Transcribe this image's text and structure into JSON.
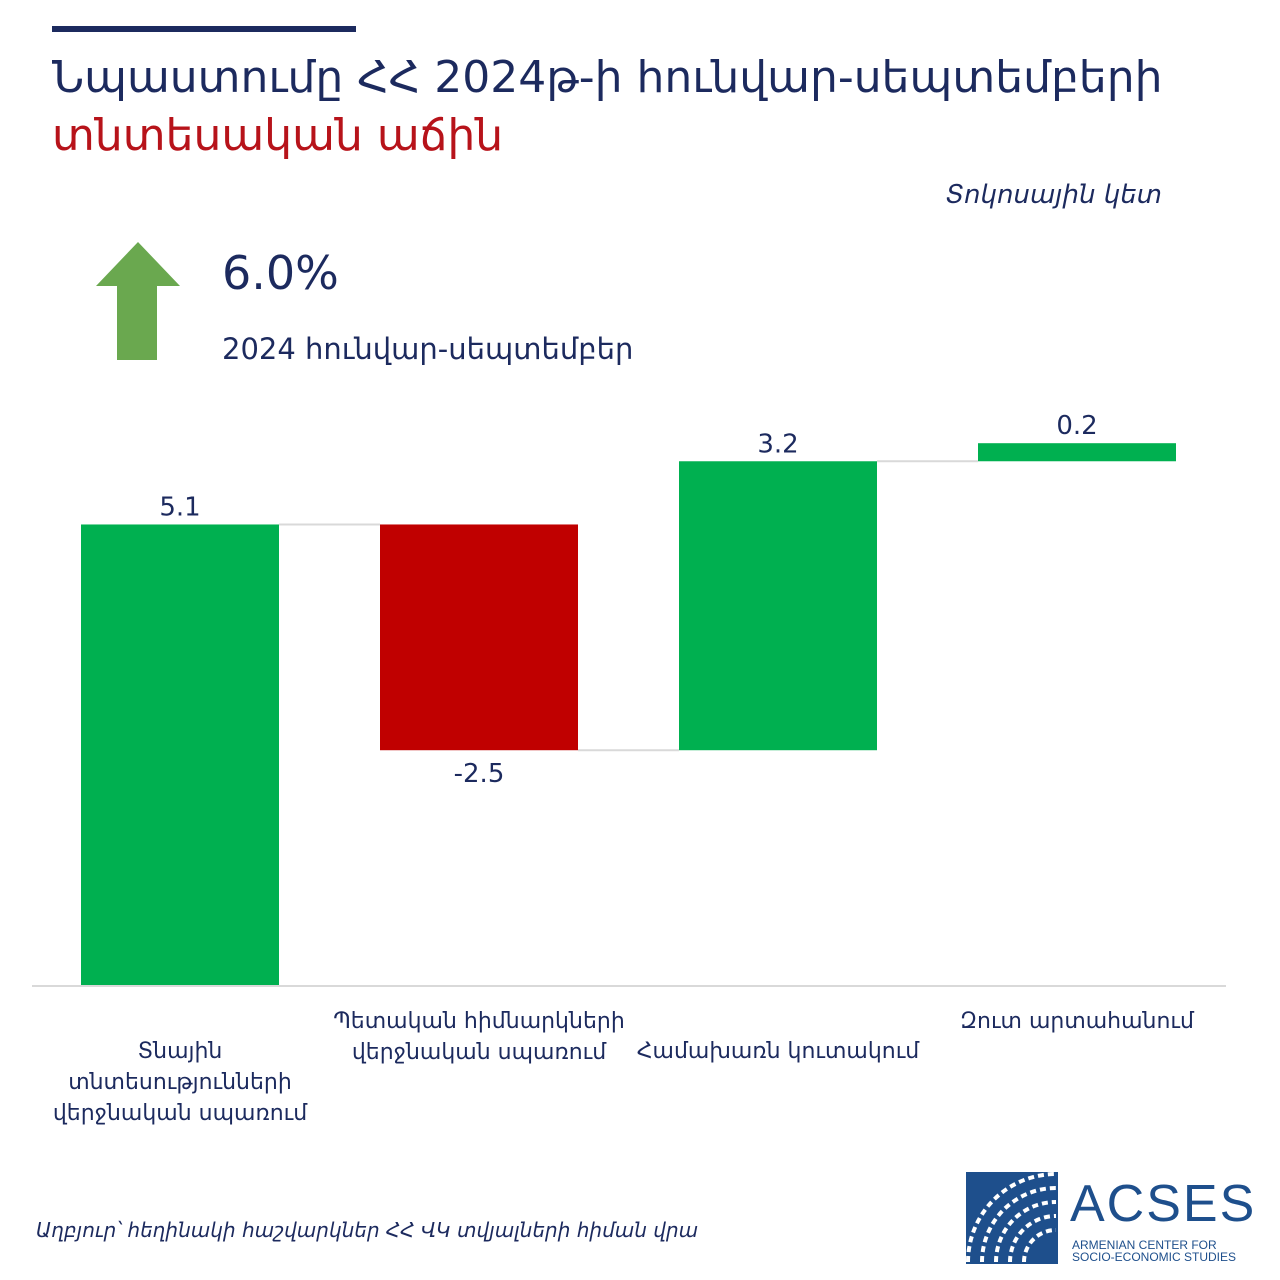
{
  "header": {
    "title_line1": "Նպաստումը ՀՀ 2024թ-ի հունվար-սեպտեմբերի",
    "title_line2": "տնտեսական աճին",
    "unit_note": "Տոկոսային կետ"
  },
  "headline": {
    "value": "6.0%",
    "period": "2024 հունվար-սեպտեմբեր",
    "arrow_icon": "up-arrow-icon",
    "arrow_color": "#6aa84f"
  },
  "chart_data": {
    "type": "waterfall",
    "title": "Նպաստումը ՀՀ 2024թ-ի հունվար-սեպտեմբերի տնտեսական աճին",
    "ylabel": "Տոկոսային կետ",
    "total": 6.0,
    "categories": [
      "Տնային տնտեսությունների վերջնական սպառում",
      "Պետական հիմնարկների վերջնական սպառում",
      "Համախառն կուտակում",
      "Զուտ արտահանում"
    ],
    "category_lines": [
      [
        "Տնային",
        "տնտեսությունների",
        "վերջնական սպառում"
      ],
      [
        "Պետական հիմնարկների",
        "վերջնական սպառում"
      ],
      [
        "Համախառն կուտակում"
      ],
      [
        "Զուտ արտահանում"
      ]
    ],
    "values": [
      5.1,
      -2.5,
      3.2,
      0.2
    ],
    "value_labels": [
      "5.1",
      "-2.5",
      "3.2",
      "0.2"
    ],
    "positive_color": "#00b050",
    "negative_color": "#c00000",
    "grid": false,
    "legend": "none"
  },
  "footer": {
    "source": "Աղբյուր՝ հեղինակի հաշվարկներ ՀՀ ՎԿ տվյալների հիման վրա"
  },
  "logo": {
    "name": "ACSES",
    "sub_line1": "ARMENIAN CENTER FOR",
    "sub_line2": "SOCIO-ECONOMIC STUDIES",
    "color": "#1e4f8c"
  }
}
